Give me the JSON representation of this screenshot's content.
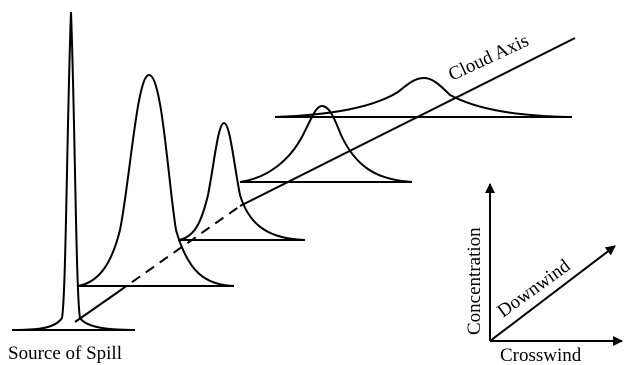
{
  "labels": {
    "source": "Source of Spill",
    "cloud_axis": "Cloud Axis",
    "concentration": "Concentration",
    "downwind": "Downwind",
    "crosswind": "Crosswind"
  },
  "colors": {
    "ink": "#000000",
    "background": "#ffffff"
  }
}
